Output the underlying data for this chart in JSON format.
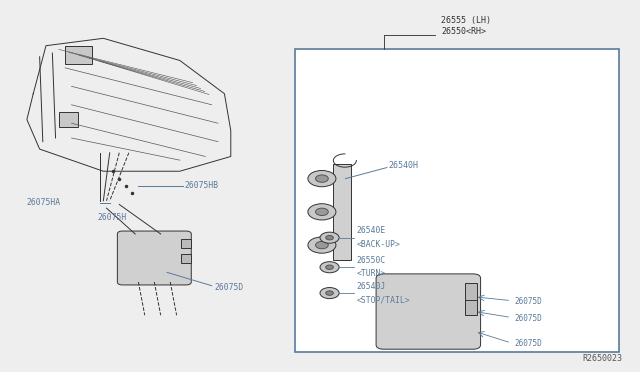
{
  "bg_color": "#eeeeee",
  "line_color": "#5a7a9a",
  "ref_number": "R2650023",
  "box_label_line1": "26550<RH>",
  "box_label_line2": "26555 (LH)"
}
